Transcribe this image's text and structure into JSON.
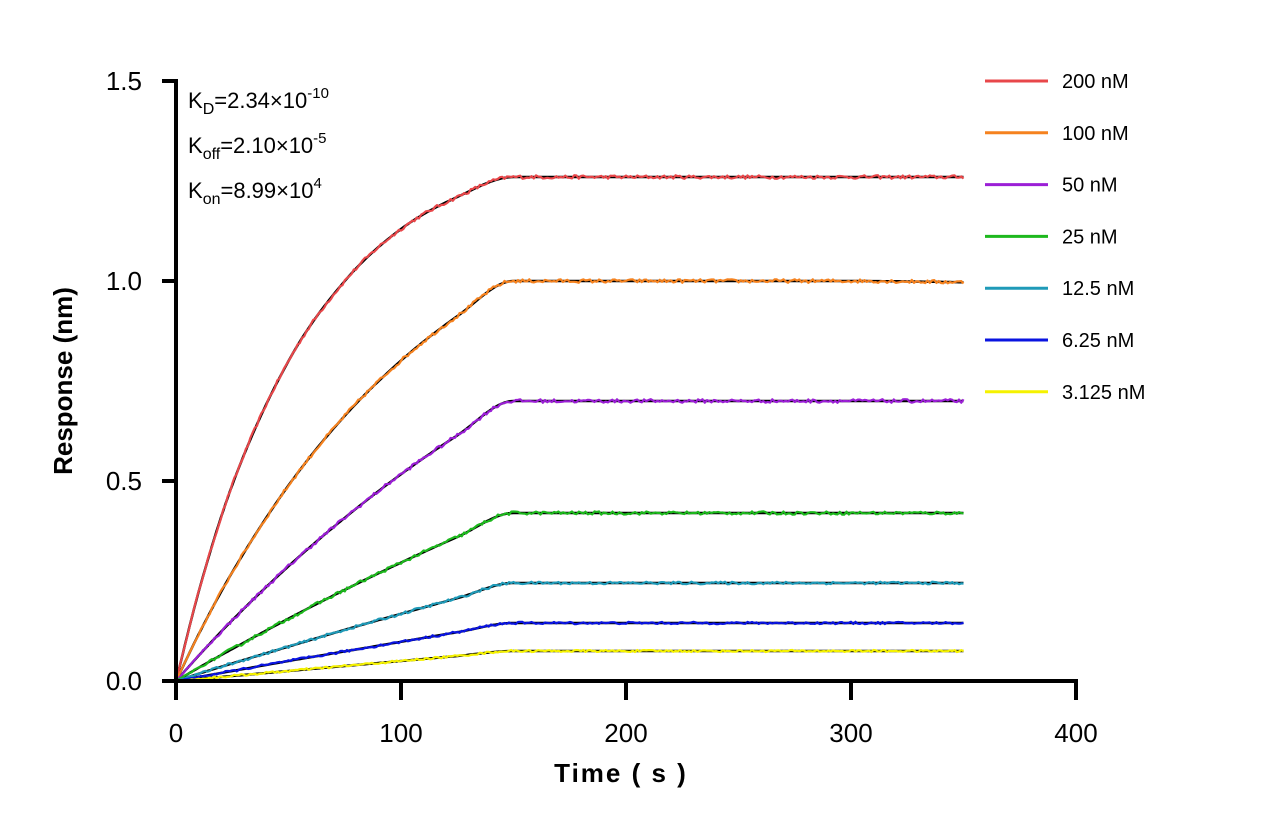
{
  "chart_data": {
    "type": "line",
    "xlabel": "Time ( s )",
    "ylabel": "Response (nm)",
    "xlim": [
      0,
      400
    ],
    "ylim": [
      0,
      1.5
    ],
    "xticks": [
      "0",
      "100",
      "200",
      "300",
      "400"
    ],
    "yticks": [
      "0.0",
      "0.5",
      "1.0",
      "1.5"
    ],
    "grid": false,
    "legend_position": "right",
    "fit_color": "#000000",
    "annotations": [
      {
        "label": "K",
        "sub": "D",
        "eq": "=2.34×10",
        "sup": "-10"
      },
      {
        "label": "K",
        "sub": "off",
        "eq": "=2.10×10",
        "sup": "-5"
      },
      {
        "label": "K",
        "sub": "on",
        "eq": "=8.99×10",
        "sup": "4"
      }
    ],
    "x": [
      0,
      10,
      25,
      50,
      75,
      100,
      125,
      150,
      200,
      250,
      300,
      350
    ],
    "series": [
      {
        "name": "200 nM",
        "color": "#e8474a",
        "values": [
          0,
          0.222,
          0.49,
          0.8,
          1.0,
          1.13,
          1.21,
          1.26,
          1.26,
          1.26,
          1.26,
          1.26
        ]
      },
      {
        "name": "100 nM",
        "color": "#f5821f",
        "values": [
          0,
          0.116,
          0.272,
          0.489,
          0.663,
          0.801,
          0.912,
          1.0,
          1.0,
          1.0,
          1.0,
          0.997
        ]
      },
      {
        "name": "50 nM",
        "color": "#9b1fd6",
        "values": [
          0,
          0.063,
          0.152,
          0.287,
          0.408,
          0.517,
          0.614,
          0.7,
          0.7,
          0.7,
          0.7,
          0.7
        ]
      },
      {
        "name": "25 nM",
        "color": "#1db81d",
        "values": [
          0,
          0.033,
          0.08,
          0.156,
          0.228,
          0.296,
          0.36,
          0.42,
          0.42,
          0.42,
          0.42,
          0.42
        ]
      },
      {
        "name": "12.5 nM",
        "color": "#1f9ab8",
        "values": [
          0,
          0.018,
          0.044,
          0.086,
          0.128,
          0.168,
          0.207,
          0.245,
          0.245,
          0.245,
          0.245,
          0.245
        ]
      },
      {
        "name": "6.25 nM",
        "color": "#0a14e0",
        "values": [
          0,
          0.01,
          0.025,
          0.05,
          0.074,
          0.098,
          0.122,
          0.145,
          0.145,
          0.145,
          0.145,
          0.145
        ]
      },
      {
        "name": "3.125 nM",
        "color": "#f5f200",
        "values": [
          0,
          0.005,
          0.0126,
          0.0251,
          0.0376,
          0.05,
          0.0626,
          0.075,
          0.075,
          0.075,
          0.075,
          0.075
        ]
      }
    ]
  }
}
